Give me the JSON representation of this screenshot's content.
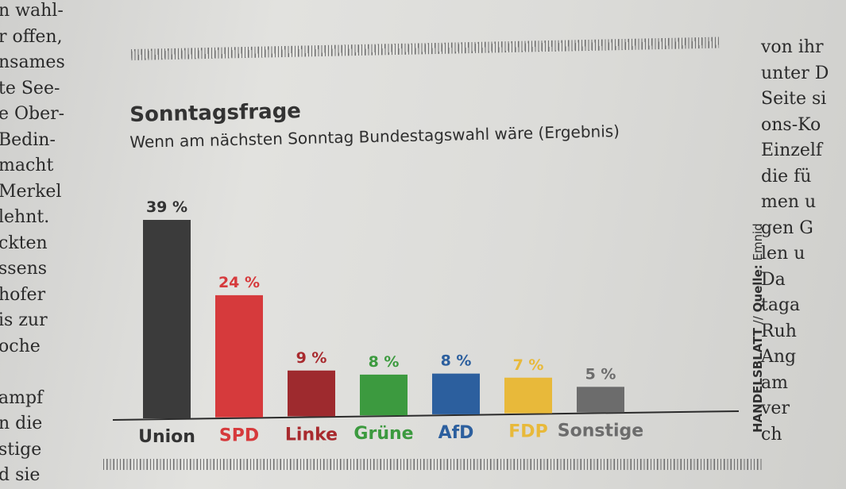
{
  "article": {
    "left_column": [
      "n wahl-",
      "r offen,",
      "nsames",
      "te See-",
      "e Ober-",
      "Bedin-",
      "macht",
      "Merkel",
      "lehnt.",
      "ckten",
      "ssens",
      "hofer",
      "is zur",
      "oche",
      "",
      "ampf",
      "n die",
      "stige",
      "d sie"
    ],
    "right_column": [
      "von ihr",
      "unter D",
      "Seite si",
      "ons-Ko",
      "Einzelf",
      "die fü",
      "men u",
      "gen G",
      "len u",
      "Da",
      "taga",
      "Ruh",
      "Ang",
      "am",
      "ver",
      "ch"
    ]
  },
  "source": {
    "publisher": "HANDELSBLATT",
    "separator": " // ",
    "label": "Quelle:",
    "name": " Emnid"
  },
  "chart_data": {
    "type": "bar",
    "title": "Sonntagsfrage",
    "subtitle": "Wenn am nächsten Sonntag Bundestagswahl wäre (Ergebnis)",
    "categories": [
      "Union",
      "SPD",
      "Linke",
      "Grüne",
      "AfD",
      "FDP",
      "Sonstige"
    ],
    "values": [
      39,
      24,
      9,
      8,
      8,
      7,
      5
    ],
    "value_labels": [
      "39 %",
      "24 %",
      "9 %",
      "8 %",
      "8 %",
      "7 %",
      "5 %"
    ],
    "colors": [
      "#3b3b3b",
      "#d63a3c",
      "#9e2a2e",
      "#3c9a3f",
      "#2c5f9e",
      "#e8b93a",
      "#6c6c6c"
    ],
    "label_colors": [
      "#333333",
      "#d63a3c",
      "#a82a2e",
      "#3c9a3f",
      "#2c5f9e",
      "#e8b93a",
      "#6c6c6c"
    ],
    "ylim": [
      0,
      39
    ],
    "grid": false,
    "legend": "none"
  }
}
